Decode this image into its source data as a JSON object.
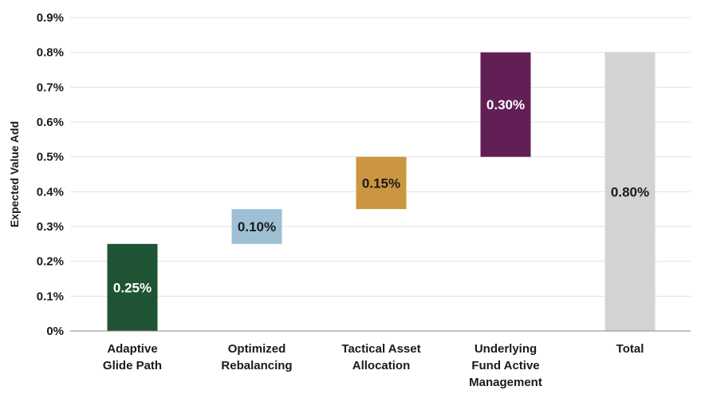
{
  "chart_data": {
    "type": "bar",
    "subtype": "waterfall",
    "ylabel": "Expected Value Add",
    "ylim": [
      0,
      0.9
    ],
    "y_ticks": [
      {
        "value": 0,
        "label": "0%"
      },
      {
        "value": 0.1,
        "label": "0.1%"
      },
      {
        "value": 0.2,
        "label": "0.2%"
      },
      {
        "value": 0.3,
        "label": "0.3%"
      },
      {
        "value": 0.4,
        "label": "0.4%"
      },
      {
        "value": 0.5,
        "label": "0.5%"
      },
      {
        "value": 0.6,
        "label": "0.6%"
      },
      {
        "value": 0.7,
        "label": "0.7%"
      },
      {
        "value": 0.8,
        "label": "0.8%"
      },
      {
        "value": 0.9,
        "label": "0.9%"
      }
    ],
    "grid": true,
    "bars": [
      {
        "category": [
          "Adaptive",
          "Glide Path"
        ],
        "start": 0,
        "value": 0.25,
        "label": "0.25%",
        "color": "#1e5334",
        "label_color": "#ffffff"
      },
      {
        "category": [
          "Optimized",
          "Rebalancing"
        ],
        "start": 0.25,
        "value": 0.1,
        "label": "0.10%",
        "color": "#9dc0d4",
        "label_color": "#1a1a1a"
      },
      {
        "category": [
          "Tactical Asset",
          "Allocation"
        ],
        "start": 0.35,
        "value": 0.15,
        "label": "0.15%",
        "color": "#cc9540",
        "label_color": "#1a1a1a"
      },
      {
        "category": [
          "Underlying",
          "Fund Active",
          "Management"
        ],
        "start": 0.5,
        "value": 0.3,
        "label": "0.30%",
        "color": "#611f55",
        "label_color": "#ffffff"
      },
      {
        "category": [
          "Total"
        ],
        "start": 0,
        "value": 0.8,
        "label": "0.80%",
        "color": "#d3d3d3",
        "label_color": "#1a1a1a"
      }
    ]
  }
}
